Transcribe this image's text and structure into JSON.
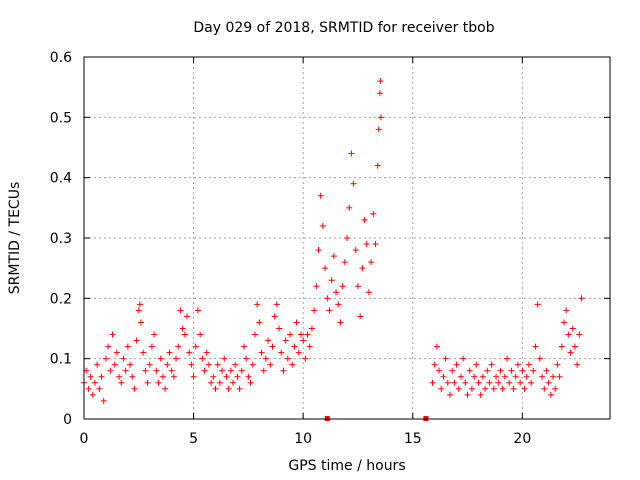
{
  "chart_data": {
    "type": "scatter",
    "title": "Day 029 of 2018, SRMTID for receiver tbob",
    "xlabel": "GPS time / hours",
    "ylabel": "SRMTID / TECUs",
    "xlim": [
      0,
      24
    ],
    "ylim": [
      0,
      0.6
    ],
    "xticks": [
      0,
      5,
      10,
      15,
      20
    ],
    "xtick_labels": [
      "0",
      "5",
      "10",
      "15",
      "20"
    ],
    "yticks": [
      0,
      0.1,
      0.2,
      0.3,
      0.4,
      0.5,
      0.6
    ],
    "ytick_labels": [
      "0",
      "0.1",
      "0.2",
      "0.3",
      "0.4",
      "0.5",
      "0.6"
    ],
    "grid": true,
    "marker": "+",
    "color": "#ff0000",
    "series": [
      {
        "name": "SRMTID",
        "points": [
          [
            0.0,
            0.06
          ],
          [
            0.1,
            0.08
          ],
          [
            0.2,
            0.05
          ],
          [
            0.3,
            0.07
          ],
          [
            0.4,
            0.04
          ],
          [
            0.5,
            0.06
          ],
          [
            0.6,
            0.09
          ],
          [
            0.7,
            0.05
          ],
          [
            0.8,
            0.07
          ],
          [
            0.9,
            0.03
          ],
          [
            1.0,
            0.1
          ],
          [
            1.1,
            0.12
          ],
          [
            1.2,
            0.08
          ],
          [
            1.3,
            0.14
          ],
          [
            1.4,
            0.09
          ],
          [
            1.5,
            0.11
          ],
          [
            1.6,
            0.07
          ],
          [
            1.7,
            0.06
          ],
          [
            1.8,
            0.1
          ],
          [
            1.9,
            0.08
          ],
          [
            2.0,
            0.12
          ],
          [
            2.1,
            0.09
          ],
          [
            2.2,
            0.07
          ],
          [
            2.3,
            0.05
          ],
          [
            2.4,
            0.13
          ],
          [
            2.5,
            0.18
          ],
          [
            2.55,
            0.19
          ],
          [
            2.6,
            0.16
          ],
          [
            2.7,
            0.11
          ],
          [
            2.8,
            0.08
          ],
          [
            2.9,
            0.06
          ],
          [
            3.0,
            0.09
          ],
          [
            3.1,
            0.12
          ],
          [
            3.2,
            0.14
          ],
          [
            3.3,
            0.08
          ],
          [
            3.4,
            0.06
          ],
          [
            3.5,
            0.1
          ],
          [
            3.6,
            0.07
          ],
          [
            3.7,
            0.05
          ],
          [
            3.8,
            0.09
          ],
          [
            3.9,
            0.11
          ],
          [
            4.0,
            0.08
          ],
          [
            4.1,
            0.07
          ],
          [
            4.2,
            0.1
          ],
          [
            4.3,
            0.12
          ],
          [
            4.4,
            0.18
          ],
          [
            4.5,
            0.15
          ],
          [
            4.6,
            0.14
          ],
          [
            4.7,
            0.17
          ],
          [
            4.8,
            0.11
          ],
          [
            4.9,
            0.09
          ],
          [
            5.0,
            0.07
          ],
          [
            5.1,
            0.12
          ],
          [
            5.2,
            0.18
          ],
          [
            5.3,
            0.14
          ],
          [
            5.4,
            0.1
          ],
          [
            5.5,
            0.08
          ],
          [
            5.6,
            0.11
          ],
          [
            5.7,
            0.09
          ],
          [
            5.8,
            0.06
          ],
          [
            5.9,
            0.07
          ],
          [
            6.0,
            0.05
          ],
          [
            6.1,
            0.09
          ],
          [
            6.2,
            0.06
          ],
          [
            6.3,
            0.08
          ],
          [
            6.4,
            0.1
          ],
          [
            6.5,
            0.07
          ],
          [
            6.6,
            0.05
          ],
          [
            6.7,
            0.08
          ],
          [
            6.8,
            0.06
          ],
          [
            6.9,
            0.09
          ],
          [
            7.0,
            0.07
          ],
          [
            7.1,
            0.05
          ],
          [
            7.2,
            0.08
          ],
          [
            7.3,
            0.12
          ],
          [
            7.4,
            0.1
          ],
          [
            7.5,
            0.07
          ],
          [
            7.6,
            0.06
          ],
          [
            7.7,
            0.09
          ],
          [
            7.8,
            0.14
          ],
          [
            7.9,
            0.19
          ],
          [
            8.0,
            0.16
          ],
          [
            8.1,
            0.11
          ],
          [
            8.2,
            0.08
          ],
          [
            8.3,
            0.1
          ],
          [
            8.4,
            0.13
          ],
          [
            8.5,
            0.09
          ],
          [
            8.6,
            0.12
          ],
          [
            8.7,
            0.17
          ],
          [
            8.8,
            0.19
          ],
          [
            8.9,
            0.15
          ],
          [
            9.0,
            0.11
          ],
          [
            9.1,
            0.08
          ],
          [
            9.2,
            0.13
          ],
          [
            9.3,
            0.1
          ],
          [
            9.4,
            0.14
          ],
          [
            9.5,
            0.09
          ],
          [
            9.6,
            0.12
          ],
          [
            9.7,
            0.16
          ],
          [
            9.8,
            0.11
          ],
          [
            9.9,
            0.14
          ],
          [
            10.0,
            0.13
          ],
          [
            10.1,
            0.1
          ],
          [
            10.2,
            0.14
          ],
          [
            10.3,
            0.12
          ],
          [
            10.4,
            0.15
          ],
          [
            10.5,
            0.18
          ],
          [
            10.6,
            0.22
          ],
          [
            10.7,
            0.28
          ],
          [
            10.8,
            0.37
          ],
          [
            10.9,
            0.32
          ],
          [
            11.0,
            0.25
          ],
          [
            11.1,
            0.2
          ],
          [
            11.2,
            0.18
          ],
          [
            11.3,
            0.23
          ],
          [
            11.4,
            0.27
          ],
          [
            11.5,
            0.21
          ],
          [
            11.6,
            0.19
          ],
          [
            11.7,
            0.16
          ],
          [
            11.8,
            0.22
          ],
          [
            11.9,
            0.26
          ],
          [
            12.0,
            0.3
          ],
          [
            12.1,
            0.35
          ],
          [
            12.2,
            0.44
          ],
          [
            12.3,
            0.39
          ],
          [
            12.4,
            0.28
          ],
          [
            12.5,
            0.22
          ],
          [
            12.6,
            0.17
          ],
          [
            12.7,
            0.25
          ],
          [
            12.8,
            0.33
          ],
          [
            12.9,
            0.29
          ],
          [
            13.0,
            0.21
          ],
          [
            13.1,
            0.26
          ],
          [
            13.2,
            0.34
          ],
          [
            13.3,
            0.29
          ],
          [
            13.4,
            0.42
          ],
          [
            13.45,
            0.48
          ],
          [
            13.5,
            0.54
          ],
          [
            13.52,
            0.56
          ],
          [
            13.55,
            0.5
          ],
          [
            15.9,
            0.06
          ],
          [
            16.0,
            0.09
          ],
          [
            16.1,
            0.12
          ],
          [
            16.2,
            0.08
          ],
          [
            16.3,
            0.05
          ],
          [
            16.4,
            0.07
          ],
          [
            16.5,
            0.1
          ],
          [
            16.6,
            0.06
          ],
          [
            16.7,
            0.04
          ],
          [
            16.8,
            0.08
          ],
          [
            16.9,
            0.06
          ],
          [
            17.0,
            0.09
          ],
          [
            17.1,
            0.05
          ],
          [
            17.2,
            0.07
          ],
          [
            17.3,
            0.1
          ],
          [
            17.4,
            0.06
          ],
          [
            17.5,
            0.04
          ],
          [
            17.6,
            0.08
          ],
          [
            17.7,
            0.05
          ],
          [
            17.8,
            0.07
          ],
          [
            17.9,
            0.09
          ],
          [
            18.0,
            0.06
          ],
          [
            18.1,
            0.04
          ],
          [
            18.2,
            0.07
          ],
          [
            18.3,
            0.05
          ],
          [
            18.4,
            0.08
          ],
          [
            18.5,
            0.06
          ],
          [
            18.6,
            0.09
          ],
          [
            18.7,
            0.05
          ],
          [
            18.8,
            0.07
          ],
          [
            18.9,
            0.06
          ],
          [
            19.0,
            0.08
          ],
          [
            19.1,
            0.05
          ],
          [
            19.2,
            0.07
          ],
          [
            19.3,
            0.1
          ],
          [
            19.4,
            0.06
          ],
          [
            19.5,
            0.08
          ],
          [
            19.6,
            0.05
          ],
          [
            19.7,
            0.07
          ],
          [
            19.8,
            0.09
          ],
          [
            19.9,
            0.06
          ],
          [
            20.0,
            0.08
          ],
          [
            20.1,
            0.05
          ],
          [
            20.2,
            0.07
          ],
          [
            20.3,
            0.09
          ],
          [
            20.4,
            0.06
          ],
          [
            20.5,
            0.08
          ],
          [
            20.6,
            0.12
          ],
          [
            20.7,
            0.19
          ],
          [
            20.8,
            0.1
          ],
          [
            20.9,
            0.07
          ],
          [
            21.0,
            0.05
          ],
          [
            21.1,
            0.08
          ],
          [
            21.2,
            0.06
          ],
          [
            21.3,
            0.04
          ],
          [
            21.4,
            0.07
          ],
          [
            21.5,
            0.05
          ],
          [
            21.6,
            0.09
          ],
          [
            21.7,
            0.07
          ],
          [
            21.8,
            0.12
          ],
          [
            21.9,
            0.16
          ],
          [
            22.0,
            0.18
          ],
          [
            22.1,
            0.14
          ],
          [
            22.2,
            0.11
          ],
          [
            22.3,
            0.15
          ],
          [
            22.4,
            0.12
          ],
          [
            22.5,
            0.09
          ],
          [
            22.6,
            0.14
          ],
          [
            22.7,
            0.2
          ]
        ]
      }
    ],
    "gap_markers_x": [
      11.1,
      15.6
    ]
  }
}
